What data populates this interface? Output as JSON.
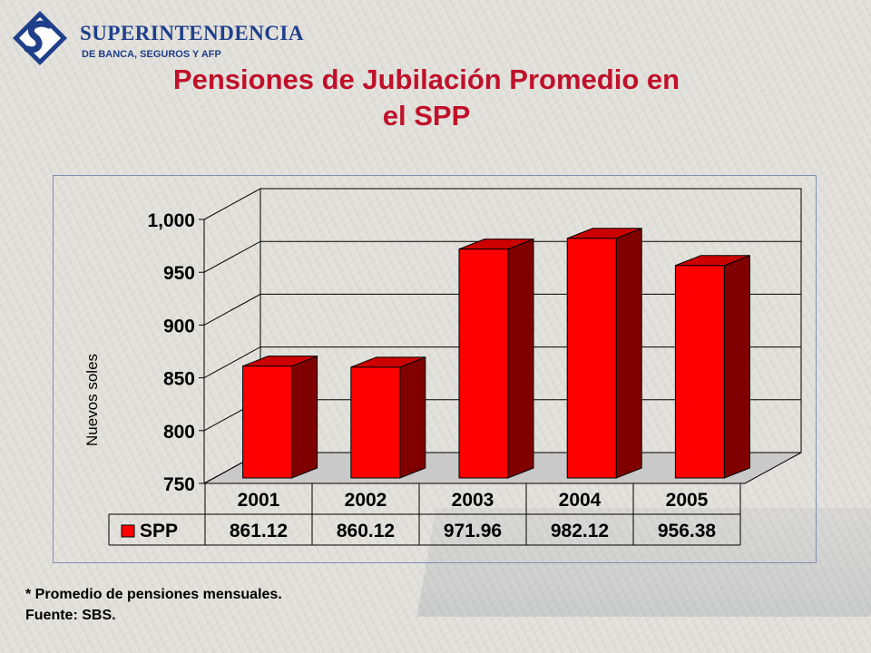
{
  "header": {
    "brand_name": "SUPERINTENDENCIA",
    "brand_sub": "DE BANCA, SEGUROS Y AFP"
  },
  "colors": {
    "bar_front": "#ff0000",
    "bar_side": "#800000",
    "bar_top": "#cc0000",
    "title": "#c0102a",
    "brand": "#1e3f8a"
  },
  "chart_data": {
    "type": "bar",
    "title": "Pensiones de Jubilación Promedio en el SPP",
    "title_lines": [
      "Pensiones de Jubilación Promedio en",
      "el SPP"
    ],
    "categories": [
      "2001",
      "2002",
      "2003",
      "2004",
      "2005"
    ],
    "series": [
      {
        "name": "SPP",
        "values": [
          861.12,
          860.12,
          971.96,
          982.12,
          956.38
        ]
      }
    ],
    "data_table": [
      "861.12",
      "860.12",
      "971.96",
      "982.12",
      "956.38"
    ],
    "ylabel": "Nuevos soles",
    "xlabel": "",
    "ylim": [
      750,
      1000
    ],
    "yticks": [
      750,
      800,
      850,
      900,
      950,
      1000
    ],
    "ytick_labels": [
      "750",
      "800",
      "850",
      "900",
      "950",
      "1,000"
    ],
    "grid": true,
    "style": "3d"
  },
  "footnotes": {
    "note": "* Promedio de pensiones mensuales.",
    "source": "Fuente: SBS."
  }
}
